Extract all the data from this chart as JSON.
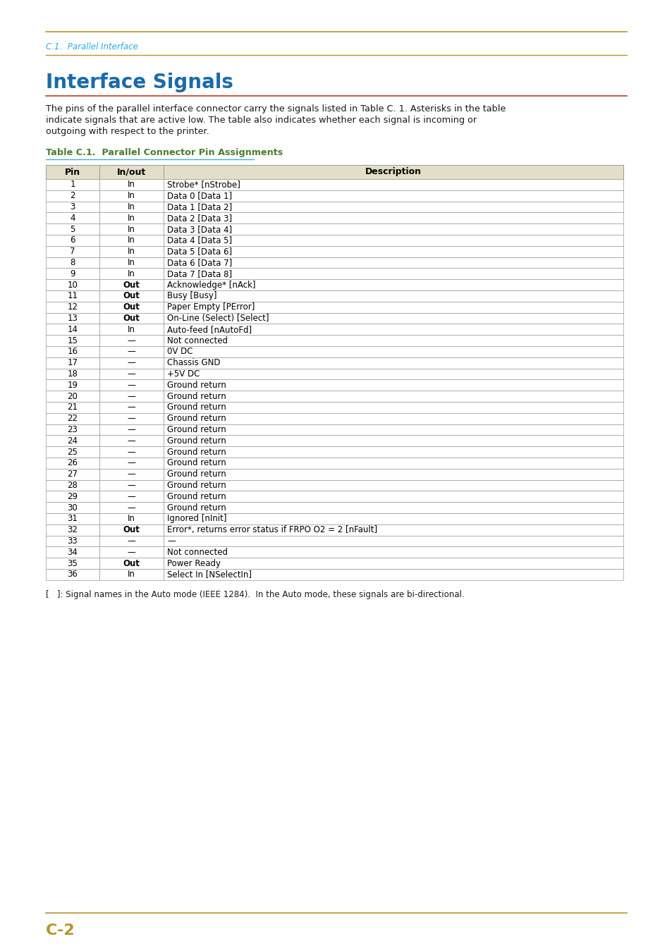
{
  "page_header": "C.1.  Parallel Interface",
  "section_title": "Interface Signals",
  "body_text": "The pins of the parallel interface connector carry the signals listed in Table C. 1. Asterisks in the table indicate signals that are active low. The table also indicates whether each signal is incoming or outgoing with respect to the printer.",
  "table_title": "Table C.1.  Parallel Connector Pin Assignments",
  "table_headers": [
    "Pin",
    "In/out",
    "Description"
  ],
  "table_data": [
    [
      "1",
      "In",
      "Strobe* [nStrobe]"
    ],
    [
      "2",
      "In",
      "Data 0 [Data 1]"
    ],
    [
      "3",
      "In",
      "Data 1 [Data 2]"
    ],
    [
      "4",
      "In",
      "Data 2 [Data 3]"
    ],
    [
      "5",
      "In",
      "Data 3 [Data 4]"
    ],
    [
      "6",
      "In",
      "Data 4 [Data 5]"
    ],
    [
      "7",
      "In",
      "Data 5 [Data 6]"
    ],
    [
      "8",
      "In",
      "Data 6 [Data 7]"
    ],
    [
      "9",
      "In",
      "Data 7 [Data 8]"
    ],
    [
      "10",
      "Out",
      "Acknowledge* [nAck]"
    ],
    [
      "11",
      "Out",
      "Busy [Busy]"
    ],
    [
      "12",
      "Out",
      "Paper Empty [PError]"
    ],
    [
      "13",
      "Out",
      "On-Line (Select) [Select]"
    ],
    [
      "14",
      "In",
      "Auto-feed [nAutoFd]"
    ],
    [
      "15",
      "—",
      "Not connected"
    ],
    [
      "16",
      "—",
      "0V DC"
    ],
    [
      "17",
      "—",
      "Chassis GND"
    ],
    [
      "18",
      "—",
      "+5V DC"
    ],
    [
      "19",
      "—",
      "Ground return"
    ],
    [
      "20",
      "—",
      "Ground return"
    ],
    [
      "21",
      "—",
      "Ground return"
    ],
    [
      "22",
      "—",
      "Ground return"
    ],
    [
      "23",
      "—",
      "Ground return"
    ],
    [
      "24",
      "—",
      "Ground return"
    ],
    [
      "25",
      "—",
      "Ground return"
    ],
    [
      "26",
      "—",
      "Ground return"
    ],
    [
      "27",
      "—",
      "Ground return"
    ],
    [
      "28",
      "—",
      "Ground return"
    ],
    [
      "29",
      "—",
      "Ground return"
    ],
    [
      "30",
      "—",
      "Ground return"
    ],
    [
      "31",
      "In",
      "Ignored [nInit]"
    ],
    [
      "32",
      "Out",
      "Error*, returns error status if FRPO O2 = 2 [nFault]"
    ],
    [
      "33",
      "—",
      "—"
    ],
    [
      "34",
      "—",
      "Not connected"
    ],
    [
      "35",
      "Out",
      "Power Ready"
    ],
    [
      "36",
      "In",
      "Select In [NSelectIn]"
    ]
  ],
  "footnote": "[   ]: Signal names in the Auto mode (IEEE 1284).  In the Auto mode, these signals are bi-directional.",
  "page_number": "C-2",
  "header_color": "#29ABE2",
  "section_title_color": "#1B6BAA",
  "gold_line_color": "#B5962A",
  "red_line_color": "#C0392B",
  "table_title_color": "#4A7C2F",
  "table_header_bg": "#E2DEC8",
  "table_border_color": "#999999",
  "body_text_color": "#1A1A1A",
  "page_bg": "#FFFFFF"
}
